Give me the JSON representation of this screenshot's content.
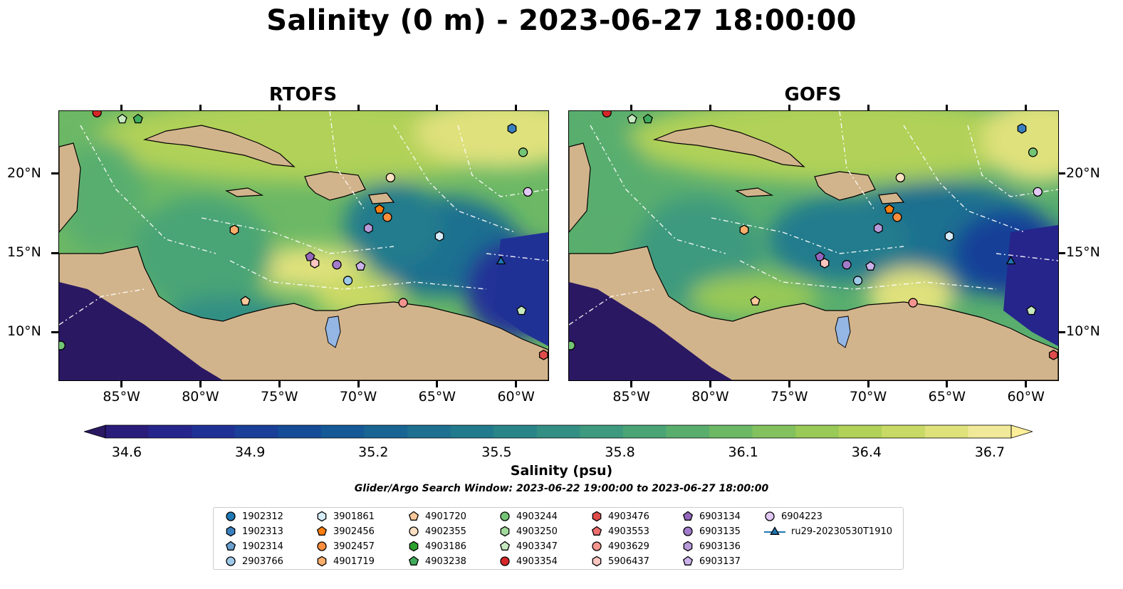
{
  "title": "Salinity (0 m) - 2023-06-27 18:00:00",
  "panels": [
    {
      "title": "RTOFS"
    },
    {
      "title": "GOFS"
    }
  ],
  "map_extent": {
    "lon": [
      -89,
      -58
    ],
    "lat": [
      7,
      24
    ]
  },
  "lat_ticks": [
    "20°N",
    "15°N",
    "10°N"
  ],
  "lon_ticks": [
    "85°W",
    "80°W",
    "75°W",
    "70°W",
    "65°W",
    "60°W"
  ],
  "colorbar": {
    "title": "Salinity (psu)",
    "range": [
      34.6,
      36.7
    ],
    "tick_labels": [
      "34.6",
      "34.9",
      "35.2",
      "35.5",
      "35.8",
      "36.1",
      "36.4",
      "36.7"
    ],
    "extend": "both",
    "colormap": "haline",
    "colors": [
      "#2a1862",
      "#2a1c7a",
      "#26258c",
      "#203196",
      "#193f98",
      "#154c98",
      "#155996",
      "#186594",
      "#1d7090",
      "#227b8d",
      "#2a8589",
      "#338f84",
      "#3d9a7e",
      "#4aa476",
      "#59ae6e",
      "#6cb865",
      "#82c15d",
      "#99c957",
      "#b1d159",
      "#c9d965",
      "#dfe17b",
      "#f0e999",
      "#fdef9a"
    ]
  },
  "search_window": "Glider/Argo Search Window: 2023-06-22 19:00:00 to 2023-06-27 18:00:00",
  "legend": [
    {
      "label": "1902312",
      "shape": "circle",
      "color": "#1f77b4"
    },
    {
      "label": "1902313",
      "shape": "hexagon",
      "color": "#3a80c0"
    },
    {
      "label": "1902314",
      "shape": "pentagon",
      "color": "#6a9fd0"
    },
    {
      "label": "2903766",
      "shape": "circle",
      "color": "#9ecae9"
    },
    {
      "label": "3901861",
      "shape": "hexagon",
      "color": "#d6ecf8"
    },
    {
      "label": "3902456",
      "shape": "pentagon",
      "color": "#ff7f0e"
    },
    {
      "label": "3902457",
      "shape": "circle",
      "color": "#fd8d3c"
    },
    {
      "label": "4901719",
      "shape": "hexagon",
      "color": "#fdae6b"
    },
    {
      "label": "4901720",
      "shape": "pentagon",
      "color": "#fdc99b"
    },
    {
      "label": "4902355",
      "shape": "circle",
      "color": "#fee0c2"
    },
    {
      "label": "4903186",
      "shape": "hexagon",
      "color": "#2ca02c"
    },
    {
      "label": "4903238",
      "shape": "pentagon",
      "color": "#41ab5d"
    },
    {
      "label": "4903244",
      "shape": "circle",
      "color": "#74c476"
    },
    {
      "label": "4903250",
      "shape": "hexagon",
      "color": "#a1d99b"
    },
    {
      "label": "4903347",
      "shape": "pentagon",
      "color": "#c7e9c0"
    },
    {
      "label": "4903354",
      "shape": "circle",
      "color": "#d62728"
    },
    {
      "label": "4903476",
      "shape": "hexagon",
      "color": "#e04b4b"
    },
    {
      "label": "4903553",
      "shape": "pentagon",
      "color": "#ee6e6e"
    },
    {
      "label": "4903629",
      "shape": "circle",
      "color": "#f4948f"
    },
    {
      "label": "5906437",
      "shape": "hexagon",
      "color": "#fcc5c0"
    },
    {
      "label": "6903134",
      "shape": "pentagon",
      "color": "#9467bd"
    },
    {
      "label": "6903135",
      "shape": "circle",
      "color": "#a27ccb"
    },
    {
      "label": "6903136",
      "shape": "hexagon",
      "color": "#b69ad8"
    },
    {
      "label": "6903137",
      "shape": "pentagon",
      "color": "#cbb2ea"
    },
    {
      "label": "6904223",
      "shape": "circle",
      "color": "#e2c8f4"
    },
    {
      "label": "ru29-20230530T1910",
      "shape": "triangle-line",
      "color": "#1f77b4"
    }
  ],
  "observations": [
    {
      "lon": -86.6,
      "lat": 23.9,
      "shape": "circle",
      "color": "#d62728"
    },
    {
      "lon": -85.0,
      "lat": 23.5,
      "shape": "pentagon",
      "color": "#c7e9c0"
    },
    {
      "lon": -84.0,
      "lat": 23.5,
      "shape": "pentagon",
      "color": "#41ab5d"
    },
    {
      "lon": -60.3,
      "lat": 22.9,
      "shape": "hexagon",
      "color": "#3a80c0"
    },
    {
      "lon": -59.6,
      "lat": 21.4,
      "shape": "circle",
      "color": "#74c476"
    },
    {
      "lon": -68.0,
      "lat": 19.8,
      "shape": "circle",
      "color": "#fee0c2"
    },
    {
      "lon": -59.3,
      "lat": 18.9,
      "shape": "circle",
      "color": "#e2c8f4"
    },
    {
      "lon": -68.7,
      "lat": 17.8,
      "shape": "pentagon",
      "color": "#ff7f0e"
    },
    {
      "lon": -68.2,
      "lat": 17.3,
      "shape": "circle",
      "color": "#fd8d3c"
    },
    {
      "lon": -77.9,
      "lat": 16.5,
      "shape": "hexagon",
      "color": "#fdae6b"
    },
    {
      "lon": -69.4,
      "lat": 16.6,
      "shape": "hexagon",
      "color": "#b69ad8"
    },
    {
      "lon": -64.9,
      "lat": 16.1,
      "shape": "hexagon",
      "color": "#d6ecf8"
    },
    {
      "lon": -73.1,
      "lat": 14.8,
      "shape": "pentagon",
      "color": "#9467bd"
    },
    {
      "lon": -72.8,
      "lat": 14.4,
      "shape": "hexagon",
      "color": "#fcc5c0"
    },
    {
      "lon": -71.4,
      "lat": 14.3,
      "shape": "circle",
      "color": "#a27ccb"
    },
    {
      "lon": -69.9,
      "lat": 14.2,
      "shape": "pentagon",
      "color": "#cbb2ea"
    },
    {
      "lon": -70.7,
      "lat": 13.3,
      "shape": "circle",
      "color": "#9ecae9"
    },
    {
      "lon": -61.0,
      "lat": 14.5,
      "shape": "triangle",
      "color": "#1f77b4"
    },
    {
      "lon": -77.2,
      "lat": 12.0,
      "shape": "pentagon",
      "color": "#fdc99b"
    },
    {
      "lon": -67.2,
      "lat": 11.9,
      "shape": "circle",
      "color": "#f4948f"
    },
    {
      "lon": -59.7,
      "lat": 11.4,
      "shape": "pentagon",
      "color": "#c7e9c0"
    },
    {
      "lon": -88.9,
      "lat": 9.2,
      "shape": "circle",
      "color": "#74c476"
    },
    {
      "lon": -58.3,
      "lat": 8.6,
      "shape": "hexagon",
      "color": "#e04b4b"
    }
  ]
}
